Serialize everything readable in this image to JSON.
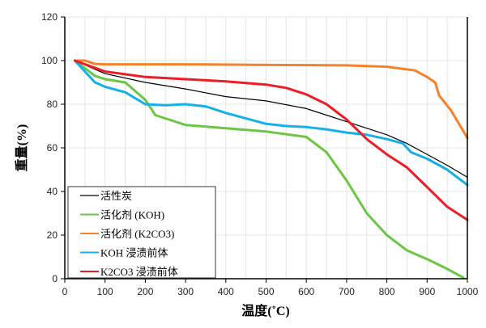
{
  "chart_data": {
    "type": "line",
    "title": "",
    "xlabel": "温度(˚C)",
    "ylabel": "重量(%)",
    "xlim": [
      0,
      1000
    ],
    "ylim": [
      0,
      120
    ],
    "xticks": [
      0,
      100,
      200,
      300,
      400,
      500,
      600,
      700,
      800,
      900,
      1000
    ],
    "yticks": [
      0,
      20,
      40,
      60,
      80,
      100,
      120
    ],
    "grid": true,
    "legend_position": "bottom-left",
    "series": [
      {
        "name": "活性炭",
        "color": "#000000",
        "points": [
          [
            25,
            100
          ],
          [
            100,
            94
          ],
          [
            200,
            90
          ],
          [
            300,
            87
          ],
          [
            400,
            83.5
          ],
          [
            500,
            81.5
          ],
          [
            600,
            78
          ],
          [
            700,
            72
          ],
          [
            800,
            66
          ],
          [
            850,
            62
          ],
          [
            900,
            57
          ],
          [
            950,
            52
          ],
          [
            1000,
            46.5
          ]
        ]
      },
      {
        "name": "活化剂 (KOH)",
        "color": "#6cc644",
        "points": [
          [
            25,
            100
          ],
          [
            75,
            93
          ],
          [
            100,
            91.5
          ],
          [
            150,
            90
          ],
          [
            200,
            82
          ],
          [
            225,
            75
          ],
          [
            300,
            70.5
          ],
          [
            400,
            69
          ],
          [
            500,
            67.5
          ],
          [
            600,
            65
          ],
          [
            650,
            58
          ],
          [
            700,
            45
          ],
          [
            750,
            30
          ],
          [
            800,
            20
          ],
          [
            850,
            13
          ],
          [
            900,
            9
          ],
          [
            950,
            4.5
          ],
          [
            990,
            0.5
          ]
        ]
      },
      {
        "name": "活化剂 (K2CO3)",
        "color": "#f5822a",
        "points": [
          [
            25,
            100
          ],
          [
            50,
            100
          ],
          [
            75,
            98.5
          ],
          [
            100,
            98.3
          ],
          [
            300,
            98.3
          ],
          [
            500,
            98
          ],
          [
            700,
            97.8
          ],
          [
            800,
            97.2
          ],
          [
            870,
            95.5
          ],
          [
            900,
            92.5
          ],
          [
            920,
            90
          ],
          [
            930,
            84
          ],
          [
            960,
            77
          ],
          [
            1000,
            64.5
          ]
        ]
      },
      {
        "name": "KOH 浸渍前体",
        "color": "#16b0e8",
        "points": [
          [
            25,
            100
          ],
          [
            75,
            90
          ],
          [
            100,
            88
          ],
          [
            150,
            85.5
          ],
          [
            200,
            80
          ],
          [
            250,
            79.5
          ],
          [
            300,
            80
          ],
          [
            350,
            79
          ],
          [
            400,
            76
          ],
          [
            500,
            71
          ],
          [
            550,
            70
          ],
          [
            600,
            69.5
          ],
          [
            650,
            68.5
          ],
          [
            700,
            67
          ],
          [
            750,
            66
          ],
          [
            800,
            64
          ],
          [
            840,
            62
          ],
          [
            860,
            58
          ],
          [
            900,
            55
          ],
          [
            950,
            50
          ],
          [
            1000,
            43
          ]
        ]
      },
      {
        "name": "K2CO3 浸渍前体",
        "color": "#ee1c25",
        "points": [
          [
            25,
            100
          ],
          [
            100,
            95
          ],
          [
            200,
            92.5
          ],
          [
            300,
            91.5
          ],
          [
            400,
            90.5
          ],
          [
            500,
            89
          ],
          [
            550,
            87.5
          ],
          [
            600,
            84.5
          ],
          [
            650,
            80
          ],
          [
            700,
            73
          ],
          [
            750,
            64
          ],
          [
            800,
            57
          ],
          [
            850,
            51
          ],
          [
            900,
            42
          ],
          [
            950,
            33
          ],
          [
            1000,
            27
          ]
        ]
      }
    ]
  }
}
